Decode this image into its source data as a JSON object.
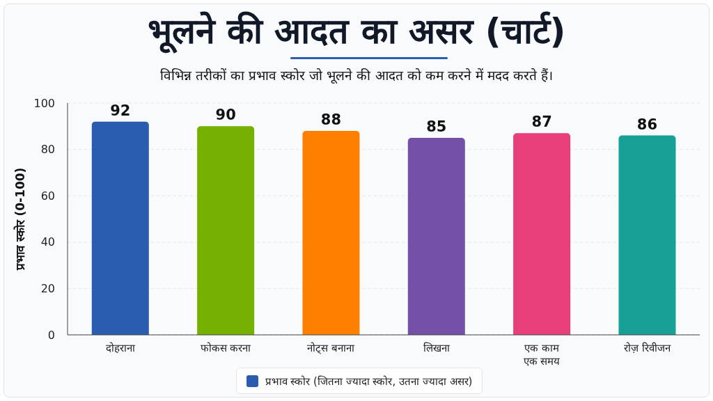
{
  "chart_data": {
    "type": "bar",
    "title": "भूलने की आदत का असर (चार्ट)",
    "subtitle": "विभिन्न तरीकों का प्रभाव स्कोर जो भूलने की आदत को कम करने में मदद करते हैं।",
    "ylabel": "प्रभाव स्कोर (0-100)",
    "categories": [
      "दोहराना",
      "फोकस करना",
      "नोट्स बनाना",
      "लिखना",
      "एक काम एक समय",
      "रोज़ रिवीजन"
    ],
    "series": [
      {
        "name": "प्रभाव स्कोर (जितना ज्यादा स्कोर, उतना ज्यादा असर)",
        "values": [
          92,
          90,
          88,
          85,
          87,
          86
        ],
        "colors": [
          "#2a5db0",
          "#76b000",
          "#ff8000",
          "#7450a8",
          "#e83e7a",
          "#17a096"
        ]
      }
    ],
    "ylim": [
      0,
      100
    ],
    "yticks": [
      0,
      20,
      40,
      60,
      80,
      100
    ],
    "grid": "y",
    "legend": "bottom",
    "data_labels": true
  }
}
